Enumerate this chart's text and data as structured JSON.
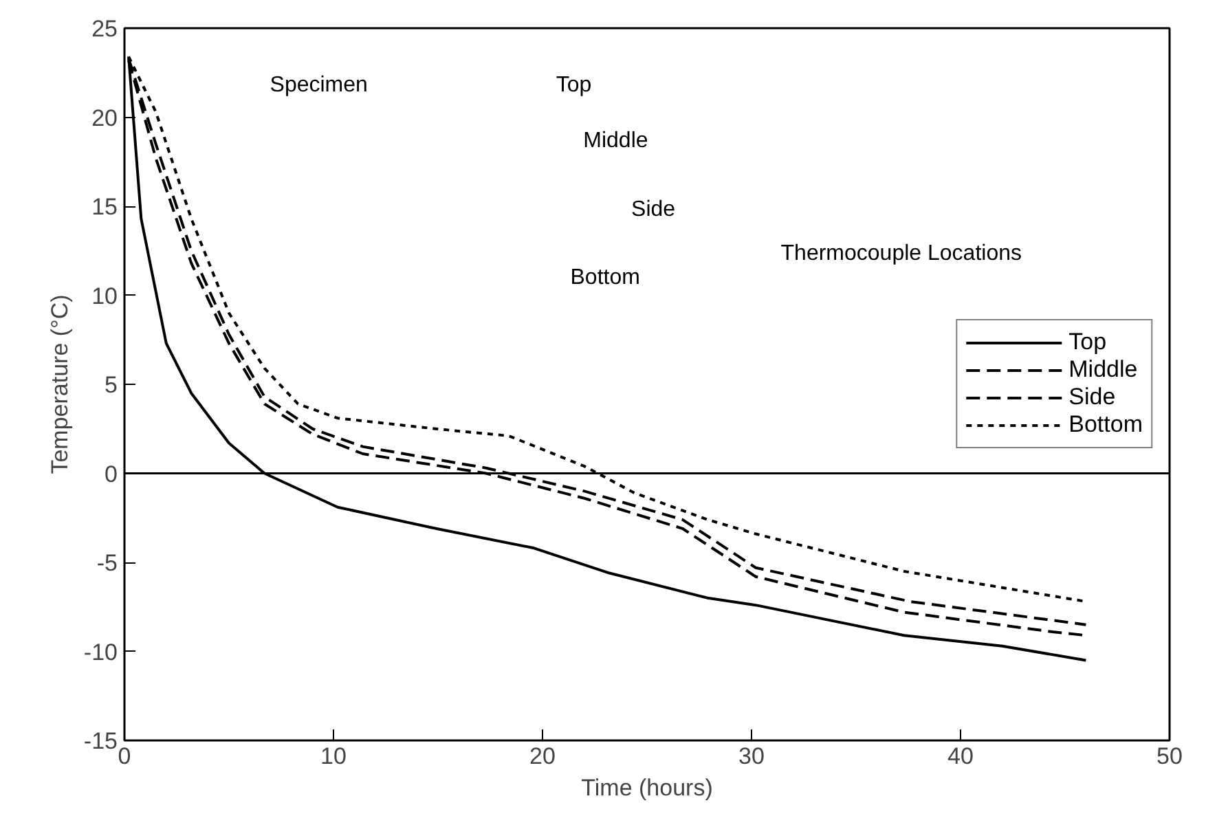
{
  "chart_data": {
    "type": "line",
    "xlabel": "Time (hours)",
    "ylabel": "Temperature (°C)",
    "xlim": [
      0,
      50
    ],
    "ylim": [
      -15,
      25
    ],
    "xticks": [
      0,
      10,
      20,
      30,
      40,
      50
    ],
    "yticks": [
      -15,
      -10,
      -5,
      0,
      5,
      10,
      15,
      20,
      25
    ],
    "grid": false,
    "legend": "right",
    "marker": "none",
    "series": [
      {
        "name": "Top",
        "color": "#000000",
        "line_style": "solid",
        "x": [
          0.2,
          0.8,
          2.0,
          3.2,
          5.0,
          6.7,
          10.2,
          14.9,
          19.6,
          23.2,
          27.9,
          30.2,
          37.3,
          42.0,
          46.0
        ],
        "values": [
          23.4,
          14.3,
          7.3,
          4.5,
          1.7,
          0.0,
          -1.9,
          -3.1,
          -4.2,
          -5.6,
          -7.0,
          -7.4,
          -9.1,
          -9.7,
          -10.5
        ]
      },
      {
        "name": "Middle",
        "color": "#000000",
        "line_style": "dashed",
        "x": [
          0.2,
          1.5,
          3.2,
          5.0,
          6.7,
          9.0,
          11.4,
          17.3,
          22.0,
          26.7,
          30.2,
          37.3,
          44.4,
          46.0
        ],
        "values": [
          23.2,
          17.7,
          11.8,
          7.3,
          3.9,
          2.2,
          1.1,
          0.0,
          -1.4,
          -3.1,
          -5.8,
          -7.8,
          -8.9,
          -9.1
        ]
      },
      {
        "name": "Side",
        "color": "#000000",
        "line_style": "dashed",
        "x": [
          0.2,
          1.5,
          3.2,
          5.0,
          6.7,
          9.0,
          11.4,
          17.3,
          22.0,
          26.7,
          30.2,
          37.6,
          46.0
        ],
        "values": [
          23.3,
          18.5,
          12.5,
          7.8,
          4.3,
          2.5,
          1.5,
          0.3,
          -1.0,
          -2.6,
          -5.3,
          -7.2,
          -8.5
        ]
      },
      {
        "name": "Bottom",
        "color": "#000000",
        "line_style": "dotted",
        "x": [
          0.2,
          1.5,
          3.2,
          5.0,
          6.7,
          8.3,
          10.2,
          14.9,
          18.4,
          22.0,
          24.4,
          27.9,
          30.2,
          37.3,
          46.0
        ],
        "values": [
          23.4,
          20.3,
          14.3,
          9.0,
          5.9,
          3.9,
          3.1,
          2.5,
          2.1,
          0.4,
          -1.1,
          -2.6,
          -3.4,
          -5.5,
          -7.2
        ]
      }
    ],
    "ref_lines": [
      {
        "axis": "y",
        "value": 0,
        "label": null,
        "color": "#000000",
        "line_style": "solid"
      }
    ],
    "annotations": [
      "Specimen",
      "Top",
      "Middle",
      "Side",
      "Bottom",
      "Thermocouple Locations"
    ]
  }
}
